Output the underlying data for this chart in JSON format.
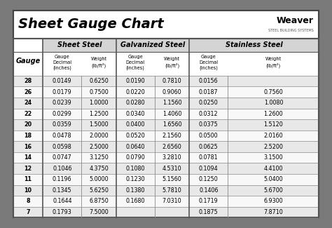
{
  "title": "Sheet Gauge Chart",
  "bg_outer": "#7a7a7a",
  "bg_white": "#ffffff",
  "bg_header_row": "#d4d4d4",
  "bg_row_alt": "#e8e8e8",
  "bg_row_white": "#f8f8f8",
  "col_headers": [
    "Sheet Steel",
    "Galvanized Steel",
    "Stainless Steel"
  ],
  "gauges": [
    28,
    26,
    24,
    22,
    20,
    18,
    16,
    14,
    12,
    11,
    10,
    8,
    7
  ],
  "sheet_steel": [
    [
      "0.0149",
      "0.6250"
    ],
    [
      "0.0179",
      "0.7500"
    ],
    [
      "0.0239",
      "1.0000"
    ],
    [
      "0.0299",
      "1.2500"
    ],
    [
      "0.0359",
      "1.5000"
    ],
    [
      "0.0478",
      "2.0000"
    ],
    [
      "0.0598",
      "2.5000"
    ],
    [
      "0.0747",
      "3.1250"
    ],
    [
      "0.1046",
      "4.3750"
    ],
    [
      "0.1196",
      "5.0000"
    ],
    [
      "0.1345",
      "5.6250"
    ],
    [
      "0.1644",
      "6.8750"
    ],
    [
      "0.1793",
      "7.5000"
    ]
  ],
  "galvanized_steel": [
    [
      "0.0190",
      "0.7810"
    ],
    [
      "0.0220",
      "0.9060"
    ],
    [
      "0.0280",
      "1.1560"
    ],
    [
      "0.0340",
      "1.4060"
    ],
    [
      "0.0400",
      "1.6560"
    ],
    [
      "0.0520",
      "2.1560"
    ],
    [
      "0.0640",
      "2.6560"
    ],
    [
      "0.0790",
      "3.2810"
    ],
    [
      "0.1080",
      "4.5310"
    ],
    [
      "0.1230",
      "5.1560"
    ],
    [
      "0.1380",
      "5.7810"
    ],
    [
      "0.1680",
      "7.0310"
    ],
    [
      "",
      ""
    ]
  ],
  "stainless_steel": [
    [
      "0.0156",
      ""
    ],
    [
      "0.0187",
      "0.7560"
    ],
    [
      "0.0250",
      "1.0080"
    ],
    [
      "0.0312",
      "1.2600"
    ],
    [
      "0.0375",
      "1.5120"
    ],
    [
      "0.0500",
      "2.0160"
    ],
    [
      "0.0625",
      "2.5200"
    ],
    [
      "0.0781",
      "3.1500"
    ],
    [
      "0.1094",
      "4.4100"
    ],
    [
      "0.1250",
      "5.0400"
    ],
    [
      "0.1406",
      "5.6700"
    ],
    [
      "0.1719",
      "6.9300"
    ],
    [
      "0.1875",
      "7.8710"
    ]
  ]
}
